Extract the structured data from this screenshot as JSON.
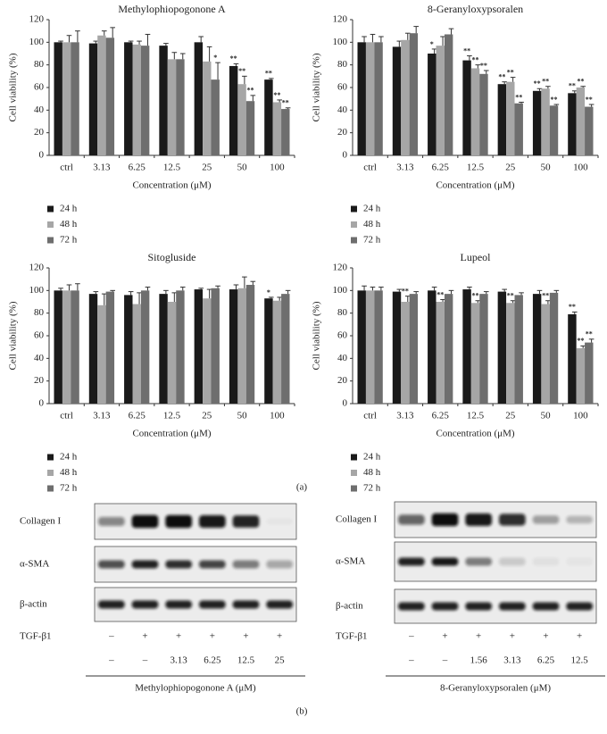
{
  "chart_data": [
    {
      "type": "bar",
      "title": "Methylophiopogonone A",
      "y_label": "Cell viability (%)",
      "x_label": "Concentration (μM)",
      "categories": [
        "ctrl",
        "3.13",
        "6.25",
        "12.5",
        "25",
        "50",
        "100"
      ],
      "ylim": [
        0,
        120
      ],
      "yticks": [
        0,
        20,
        40,
        60,
        80,
        100,
        120
      ],
      "grid": false,
      "series": [
        {
          "name": "24 h",
          "color": "#1a1a1a",
          "values": [
            100,
            99,
            100,
            97,
            100,
            79,
            67
          ],
          "errors": [
            1,
            2,
            1,
            2,
            5,
            2,
            1
          ],
          "significance": [
            null,
            null,
            null,
            null,
            null,
            "**",
            "**"
          ]
        },
        {
          "name": "48 h",
          "color": "#a6a6a6",
          "values": [
            100,
            106,
            98,
            85,
            83,
            63,
            47
          ],
          "errors": [
            6,
            4,
            3,
            6,
            13,
            7,
            2
          ],
          "significance": [
            null,
            null,
            null,
            null,
            null,
            "**",
            "**"
          ]
        },
        {
          "name": "72 h",
          "color": "#6e6e6e",
          "values": [
            100,
            104,
            97,
            85,
            67,
            48,
            41
          ],
          "errors": [
            10,
            9,
            10,
            5,
            15,
            5,
            1
          ],
          "significance": [
            null,
            null,
            null,
            null,
            "*",
            "**",
            "**"
          ]
        }
      ]
    },
    {
      "type": "bar",
      "title": "8-Geranyloxypsoralen",
      "y_label": "Cell viability (%)",
      "x_label": "Concentration (μM)",
      "categories": [
        "ctrl",
        "3.13",
        "6.25",
        "12.5",
        "25",
        "50",
        "100"
      ],
      "ylim": [
        0,
        120
      ],
      "yticks": [
        0,
        20,
        40,
        60,
        80,
        100,
        120
      ],
      "grid": false,
      "series": [
        {
          "name": "24 h",
          "color": "#1a1a1a",
          "values": [
            100,
            96,
            90,
            84,
            63,
            57,
            55
          ],
          "errors": [
            5,
            5,
            4,
            4,
            2,
            2,
            2
          ],
          "significance": [
            null,
            null,
            "*",
            "**",
            "**",
            "**",
            "**"
          ]
        },
        {
          "name": "48 h",
          "color": "#a6a6a6",
          "values": [
            100,
            102,
            97,
            77,
            65,
            59,
            60
          ],
          "errors": [
            7,
            6,
            8,
            3,
            4,
            2,
            1
          ],
          "significance": [
            null,
            null,
            null,
            "**",
            "**",
            "**",
            "**"
          ]
        },
        {
          "name": "72 h",
          "color": "#6e6e6e",
          "values": [
            100,
            108,
            107,
            72,
            46,
            44,
            43
          ],
          "errors": [
            5,
            6,
            5,
            3,
            1,
            1,
            2
          ],
          "significance": [
            null,
            null,
            null,
            "**",
            "**",
            "**",
            "**"
          ]
        }
      ]
    },
    {
      "type": "bar",
      "title": "Sitogluside",
      "y_label": "Cell viability (%)",
      "x_label": "Concentration (μM)",
      "categories": [
        "ctrl",
        "3.13",
        "6.25",
        "12.5",
        "25",
        "50",
        "100"
      ],
      "ylim": [
        0,
        120
      ],
      "yticks": [
        0,
        20,
        40,
        60,
        80,
        100,
        120
      ],
      "grid": false,
      "series": [
        {
          "name": "24 h",
          "color": "#1a1a1a",
          "values": [
            100,
            97,
            96,
            97,
            101,
            101,
            93
          ],
          "errors": [
            2,
            2,
            3,
            3,
            1,
            4,
            1
          ],
          "significance": [
            null,
            null,
            null,
            null,
            null,
            null,
            "*"
          ]
        },
        {
          "name": "48 h",
          "color": "#a6a6a6",
          "values": [
            100,
            87,
            88,
            90,
            93,
            102,
            91
          ],
          "errors": [
            5,
            10,
            10,
            8,
            8,
            10,
            3
          ],
          "significance": [
            null,
            null,
            null,
            null,
            null,
            null,
            null
          ]
        },
        {
          "name": "72 h",
          "color": "#6e6e6e",
          "values": [
            100,
            99,
            100,
            100,
            102,
            105,
            97
          ],
          "errors": [
            6,
            1,
            3,
            3,
            2,
            3,
            3
          ],
          "significance": [
            null,
            null,
            null,
            null,
            null,
            null,
            null
          ]
        }
      ]
    },
    {
      "type": "bar",
      "title": "Lupeol",
      "y_label": "Cell viability (%)",
      "x_label": "Concentration (μM)",
      "categories": [
        "ctrl",
        "3.13",
        "6.25",
        "12.5",
        "25",
        "50",
        "100"
      ],
      "ylim": [
        0,
        120
      ],
      "yticks": [
        0,
        20,
        40,
        60,
        80,
        100,
        120
      ],
      "grid": false,
      "series": [
        {
          "name": "24 h",
          "color": "#1a1a1a",
          "values": [
            100,
            99,
            100,
            101,
            99,
            97,
            79
          ],
          "errors": [
            4,
            2,
            3,
            2,
            2,
            3,
            2
          ],
          "significance": [
            null,
            null,
            null,
            null,
            null,
            null,
            "**"
          ]
        },
        {
          "name": "48 h",
          "color": "#a6a6a6",
          "values": [
            100,
            90,
            90,
            89,
            89,
            88,
            49
          ],
          "errors": [
            3,
            5,
            2,
            2,
            2,
            3,
            2
          ],
          "significance": [
            null,
            "**",
            "**",
            "**",
            "**",
            "**",
            "**"
          ]
        },
        {
          "name": "72 h",
          "color": "#6e6e6e",
          "values": [
            100,
            97,
            97,
            97,
            96,
            98,
            54
          ],
          "errors": [
            3,
            2,
            3,
            2,
            2,
            2,
            3
          ],
          "significance": [
            null,
            null,
            null,
            null,
            null,
            null,
            "**"
          ]
        }
      ]
    }
  ],
  "panel_labels": [
    "(a)",
    "(b)"
  ],
  "blots": [
    {
      "rows": [
        "Collagen I",
        "α-SMA",
        "β-actin"
      ],
      "treatment_label": "TGF-β1",
      "treatment": [
        "–",
        "+",
        "+",
        "+",
        "+",
        "+"
      ],
      "doses": [
        "–",
        "–",
        "3.13",
        "6.25",
        "12.5",
        "25"
      ],
      "caption": "Methylophiopogonone A (μM)"
    },
    {
      "rows": [
        "Collagen I",
        "α-SMA",
        "β-actin"
      ],
      "treatment_label": "TGF-β1",
      "treatment": [
        "–",
        "+",
        "+",
        "+",
        "+",
        "+"
      ],
      "doses": [
        "–",
        "–",
        "1.56",
        "3.13",
        "6.25",
        "12.5"
      ],
      "caption": "8-Geranyloxypsoralen (μM)"
    }
  ]
}
